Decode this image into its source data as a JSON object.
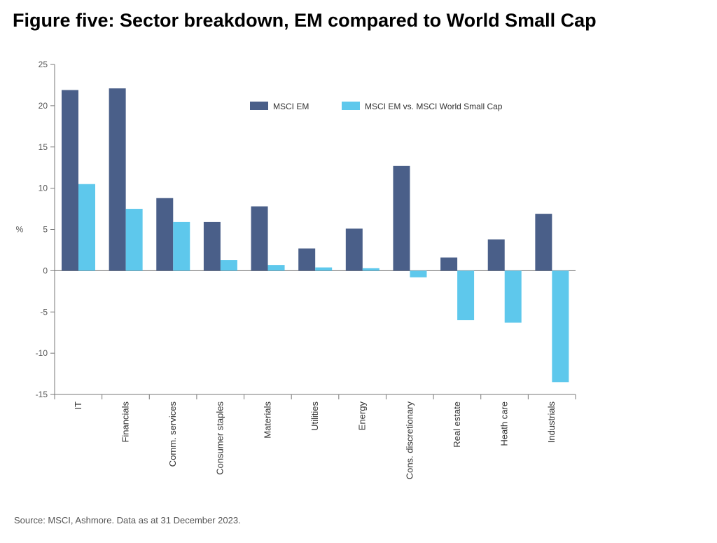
{
  "title": "Figure five: Sector breakdown, EM compared to World Small Cap",
  "source": "Source: MSCI, Ashmore. Data as at 31 December 2023.",
  "chart_data": {
    "type": "bar",
    "categories": [
      "IT",
      "Financials",
      "Comm. services",
      "Consumer staples",
      "Materials",
      "Utilities",
      "Energy",
      "Cons. discretionary",
      "Real estate",
      "Heath care",
      "Industrials"
    ],
    "series": [
      {
        "name": "MSCI EM",
        "color": "#4a5f89",
        "values": [
          21.9,
          22.1,
          8.8,
          5.9,
          7.8,
          2.7,
          5.1,
          12.7,
          1.6,
          3.8,
          6.9
        ]
      },
      {
        "name": "MSCI EM vs. MSCI World Small Cap",
        "color": "#5ec8ec",
        "values": [
          10.5,
          7.5,
          5.9,
          1.3,
          0.7,
          0.4,
          0.3,
          -0.8,
          -6.0,
          -6.3,
          -13.5
        ]
      }
    ],
    "ylabel": "%",
    "ylim": [
      -15,
      25
    ],
    "yticks": [
      25,
      20,
      15,
      10,
      5,
      0,
      -5,
      -10,
      -15
    ],
    "grid": false,
    "legend": "top-center"
  }
}
